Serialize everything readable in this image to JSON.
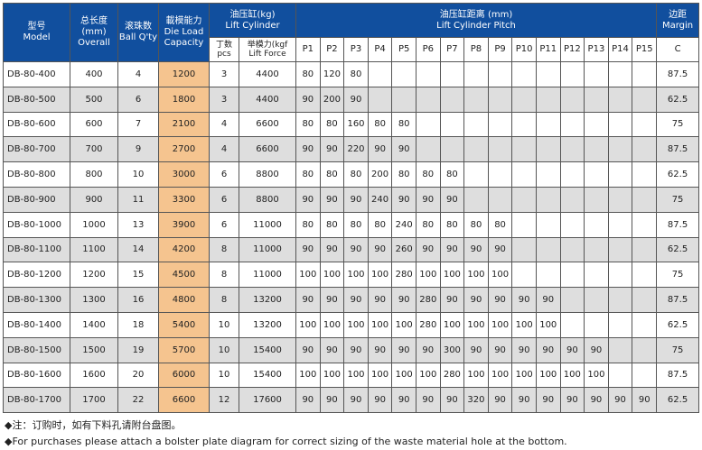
{
  "header": {
    "model": [
      "型号",
      "Model"
    ],
    "overall": [
      "总长度",
      "(mm)",
      "Overall"
    ],
    "ball": [
      "滚珠数",
      "Ball Q'ty"
    ],
    "capacity": [
      "載模能力",
      "Die Load",
      "Capacity"
    ],
    "lift_cylinder": [
      "油压缸(kg)",
      "Lift Cylinder"
    ],
    "pcs": [
      "丁数",
      "pcs"
    ],
    "lift_force": [
      "举模力(kgf",
      "Lift Force"
    ],
    "pitch": [
      "油压缸距离 (mm)",
      "Lift Cylinder Pitch"
    ],
    "margin": [
      "边距",
      "Margin"
    ],
    "pitch_cols": [
      "P1",
      "P2",
      "P3",
      "P4",
      "P5",
      "P6",
      "P7",
      "P8",
      "P9",
      "P10",
      "P11",
      "P12",
      "P13",
      "P14",
      "P15"
    ],
    "margin_col": "C"
  },
  "colors": {
    "header": "#114f9e",
    "capacity": "#f5c48f",
    "alt_row": "#dedede"
  },
  "rows": [
    [
      "DB-80-400",
      "400",
      "4",
      "1200",
      "3",
      "4400",
      [
        "80",
        "120",
        "80"
      ],
      "87.5"
    ],
    [
      "DB-80-500",
      "500",
      "6",
      "1800",
      "3",
      "4400",
      [
        "90",
        "200",
        "90"
      ],
      "62.5"
    ],
    [
      "DB-80-600",
      "600",
      "7",
      "2100",
      "4",
      "6600",
      [
        "80",
        "80",
        "160",
        "80",
        "80"
      ],
      "75"
    ],
    [
      "DB-80-700",
      "700",
      "9",
      "2700",
      "4",
      "6600",
      [
        "90",
        "90",
        "220",
        "90",
        "90"
      ],
      "87.5"
    ],
    [
      "DB-80-800",
      "800",
      "10",
      "3000",
      "6",
      "8800",
      [
        "80",
        "80",
        "80",
        "200",
        "80",
        "80",
        "80"
      ],
      "62.5"
    ],
    [
      "DB-80-900",
      "900",
      "11",
      "3300",
      "6",
      "8800",
      [
        "90",
        "90",
        "90",
        "240",
        "90",
        "90",
        "90"
      ],
      "75"
    ],
    [
      "DB-80-1000",
      "1000",
      "13",
      "3900",
      "6",
      "11000",
      [
        "80",
        "80",
        "80",
        "80",
        "240",
        "80",
        "80",
        "80",
        "80"
      ],
      "87.5"
    ],
    [
      "DB-80-1100",
      "1100",
      "14",
      "4200",
      "8",
      "11000",
      [
        "90",
        "90",
        "90",
        "90",
        "260",
        "90",
        "90",
        "90",
        "90"
      ],
      "62.5"
    ],
    [
      "DB-80-1200",
      "1200",
      "15",
      "4500",
      "8",
      "11000",
      [
        "100",
        "100",
        "100",
        "100",
        "280",
        "100",
        "100",
        "100",
        "100"
      ],
      "75"
    ],
    [
      "DB-80-1300",
      "1300",
      "16",
      "4800",
      "8",
      "13200",
      [
        "90",
        "90",
        "90",
        "90",
        "90",
        "280",
        "90",
        "90",
        "90",
        "90",
        "90"
      ],
      "87.5"
    ],
    [
      "DB-80-1400",
      "1400",
      "18",
      "5400",
      "10",
      "13200",
      [
        "100",
        "100",
        "100",
        "100",
        "100",
        "280",
        "100",
        "100",
        "100",
        "100",
        "100"
      ],
      "62.5"
    ],
    [
      "DB-80-1500",
      "1500",
      "19",
      "5700",
      "10",
      "15400",
      [
        "90",
        "90",
        "90",
        "90",
        "90",
        "90",
        "300",
        "90",
        "90",
        "90",
        "90",
        "90",
        "90"
      ],
      "75"
    ],
    [
      "DB-80-1600",
      "1600",
      "20",
      "6000",
      "10",
      "15400",
      [
        "100",
        "100",
        "100",
        "100",
        "100",
        "100",
        "280",
        "100",
        "100",
        "100",
        "100",
        "100",
        "100"
      ],
      "87.5"
    ],
    [
      "DB-80-1700",
      "1700",
      "22",
      "6600",
      "12",
      "17600",
      [
        "90",
        "90",
        "90",
        "90",
        "90",
        "90",
        "90",
        "320",
        "90",
        "90",
        "90",
        "90",
        "90",
        "90",
        "90"
      ],
      "62.5"
    ]
  ],
  "notes": [
    "◆注：订购时，如有下料孔请附台盘图。",
    "◆For purchases please attach a bolster plate diagram for correct sizing of the waste material hole at the bottom."
  ]
}
